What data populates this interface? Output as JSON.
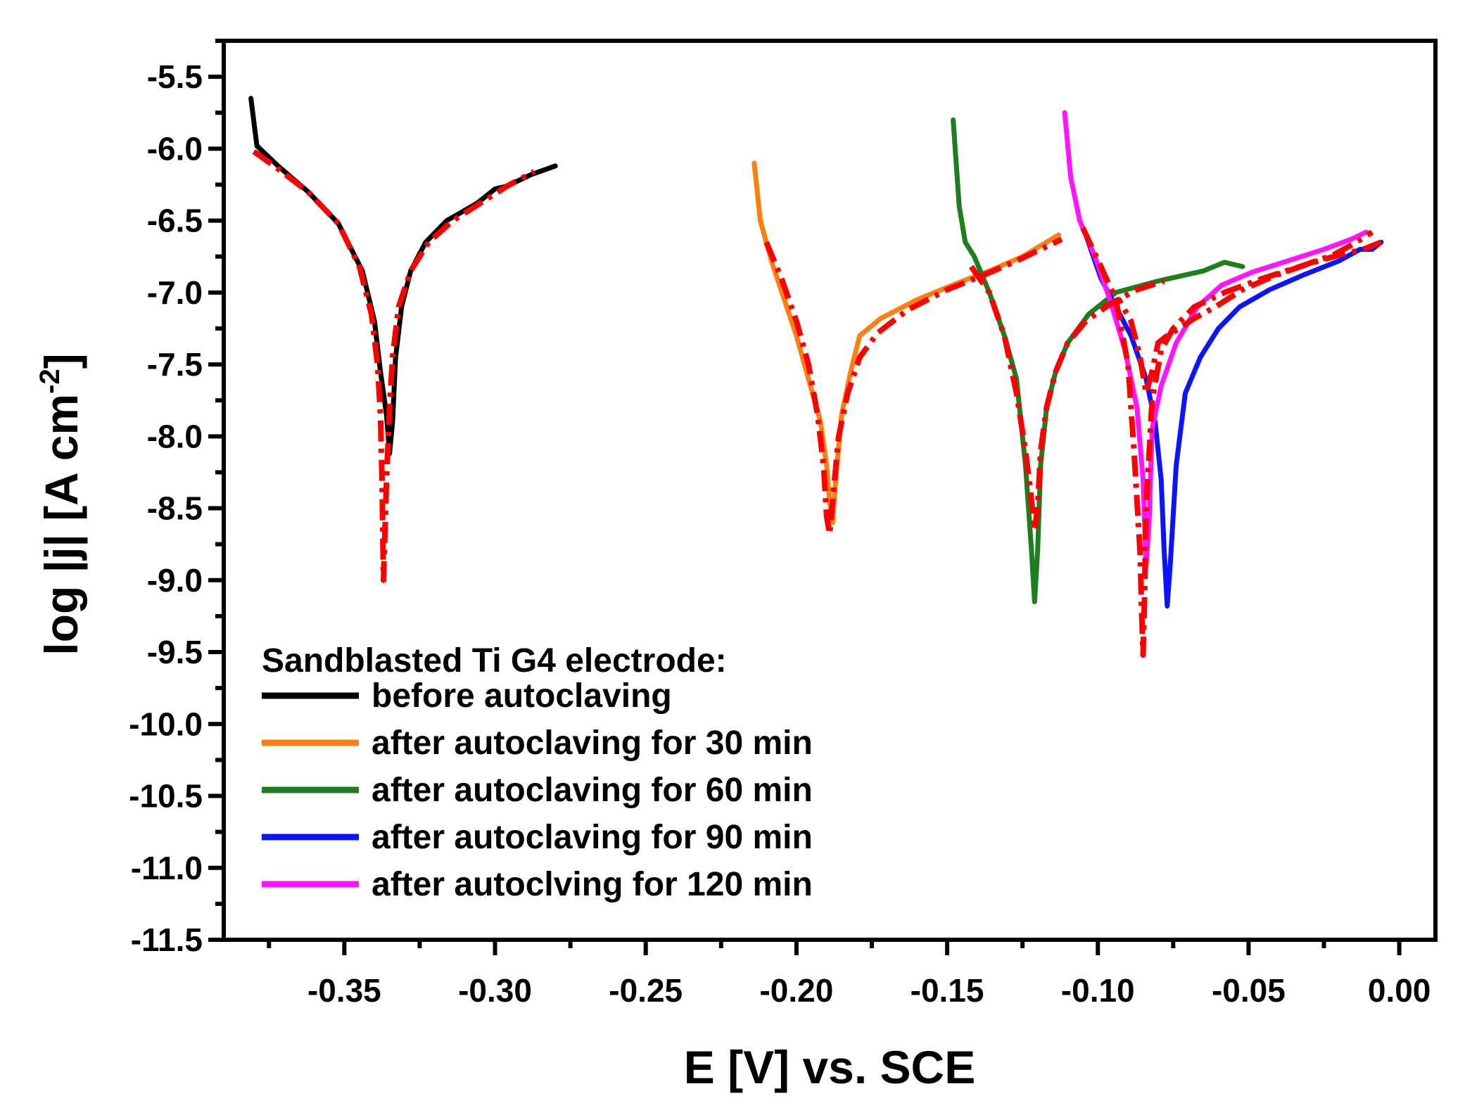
{
  "chart_data": {
    "type": "line",
    "xlabel": "E [V] vs. SCE",
    "ylabel_main": "log |j| [A cm",
    "ylabel_sup": "-2",
    "ylabel_close": "]",
    "xlim": [
      -0.39,
      0.012
    ],
    "ylim": [
      -11.5,
      -5.25
    ],
    "xticks": [
      -0.35,
      -0.3,
      -0.25,
      -0.2,
      -0.15,
      -0.1,
      -0.05,
      0.0
    ],
    "xtick_labels": [
      "-0.35",
      "-0.30",
      "-0.25",
      "-0.20",
      "-0.15",
      "-0.10",
      "-0.05",
      "0.00"
    ],
    "yticks": [
      -5.5,
      -6.0,
      -6.5,
      -7.0,
      -7.5,
      -8.0,
      -8.5,
      -9.0,
      -9.5,
      -10.0,
      -10.5,
      -11.0,
      -11.5
    ],
    "ytick_labels": [
      "-5.5",
      "-6.0",
      "-6.5",
      "-7.0",
      "-7.5",
      "-8.0",
      "-8.5",
      "-9.0",
      "-9.5",
      "-10.0",
      "-10.5",
      "-11.0",
      "-11.5"
    ],
    "grid": false,
    "legend_position": "bottom-left",
    "legend_title": "Sandblasted Ti G4 electrode:",
    "series": [
      {
        "name": "before autoclaving",
        "color": "#000000",
        "x": [
          -0.381,
          -0.379,
          -0.372,
          -0.362,
          -0.352,
          -0.344,
          -0.34,
          -0.338,
          -0.336,
          -0.335,
          -0.334,
          -0.333,
          -0.331,
          -0.328,
          -0.323,
          -0.316,
          -0.306,
          -0.3,
          -0.296,
          -0.288,
          -0.28
        ],
        "y": [
          -5.65,
          -5.98,
          -6.12,
          -6.3,
          -6.52,
          -6.85,
          -7.2,
          -7.55,
          -7.85,
          -8.12,
          -7.9,
          -7.45,
          -7.1,
          -6.85,
          -6.65,
          -6.5,
          -6.38,
          -6.28,
          -6.26,
          -6.18,
          -6.12
        ]
      },
      {
        "name": "after autoclaving for 30 min",
        "color": "#ff7f0e",
        "x": [
          -0.214,
          -0.212,
          -0.208,
          -0.204,
          -0.2,
          -0.196,
          -0.192,
          -0.19,
          -0.189,
          -0.188,
          -0.187,
          -0.185,
          -0.182,
          -0.179,
          -0.172,
          -0.16,
          -0.146,
          -0.136,
          -0.125,
          -0.117,
          -0.113
        ],
        "y": [
          -6.1,
          -6.5,
          -6.8,
          -7.05,
          -7.3,
          -7.6,
          -7.9,
          -8.2,
          -8.45,
          -8.6,
          -8.3,
          -7.85,
          -7.55,
          -7.3,
          -7.18,
          -7.05,
          -6.93,
          -6.85,
          -6.75,
          -6.65,
          -6.6
        ]
      },
      {
        "name": "after autoclaving for 60 min",
        "color": "#1e7d1e",
        "x": [
          -0.148,
          -0.147,
          -0.146,
          -0.144,
          -0.141,
          -0.136,
          -0.131,
          -0.127,
          -0.124,
          -0.122,
          -0.121,
          -0.12,
          -0.119,
          -0.117,
          -0.114,
          -0.11,
          -0.103,
          -0.094,
          -0.08,
          -0.065,
          -0.058,
          -0.052
        ],
        "y": [
          -5.8,
          -6.1,
          -6.4,
          -6.65,
          -6.75,
          -7.0,
          -7.3,
          -7.6,
          -8.2,
          -8.8,
          -9.15,
          -8.8,
          -8.2,
          -7.8,
          -7.55,
          -7.35,
          -7.15,
          -7.0,
          -6.92,
          -6.85,
          -6.79,
          -6.82
        ]
      },
      {
        "name": "after autoclaving for 90 min",
        "color": "#0a14ff",
        "x": [
          -0.104,
          -0.099,
          -0.094,
          -0.089,
          -0.084,
          -0.081,
          -0.079,
          -0.078,
          -0.077,
          -0.076,
          -0.074,
          -0.071,
          -0.066,
          -0.06,
          -0.053,
          -0.043,
          -0.032,
          -0.02,
          -0.013,
          -0.009,
          -0.006
        ],
        "y": [
          -6.6,
          -6.9,
          -7.1,
          -7.3,
          -7.6,
          -7.9,
          -8.3,
          -8.8,
          -9.18,
          -8.9,
          -8.2,
          -7.7,
          -7.45,
          -7.25,
          -7.1,
          -6.98,
          -6.88,
          -6.78,
          -6.7,
          -6.7,
          -6.65
        ]
      },
      {
        "name": "after autoclving for 120 min",
        "color": "#ff14ff",
        "x": [
          -0.111,
          -0.109,
          -0.106,
          -0.101,
          -0.096,
          -0.091,
          -0.087,
          -0.085,
          -0.084,
          -0.083,
          -0.082,
          -0.079,
          -0.074,
          -0.067,
          -0.059,
          -0.049,
          -0.037,
          -0.025,
          -0.016,
          -0.011
        ],
        "y": [
          -5.75,
          -6.2,
          -6.5,
          -6.75,
          -7.05,
          -7.4,
          -7.8,
          -8.3,
          -8.9,
          -8.6,
          -7.95,
          -7.65,
          -7.35,
          -7.1,
          -6.95,
          -6.86,
          -6.78,
          -6.7,
          -6.63,
          -6.58
        ]
      }
    ],
    "fits": [
      {
        "color": "#ff0000",
        "x": [
          -0.38,
          -0.372,
          -0.362,
          -0.352,
          -0.345,
          -0.341,
          -0.339,
          -0.338,
          -0.3375,
          -0.337,
          -0.336,
          -0.335,
          -0.334,
          -0.332,
          -0.328,
          -0.322,
          -0.314,
          -0.305,
          -0.296,
          -0.287
        ],
        "y": [
          -6.02,
          -6.14,
          -6.3,
          -6.52,
          -6.82,
          -7.15,
          -7.5,
          -7.85,
          -8.3,
          -9.0,
          -8.3,
          -7.8,
          -7.45,
          -7.1,
          -6.85,
          -6.65,
          -6.5,
          -6.38,
          -6.26,
          -6.16
        ]
      },
      {
        "color": "#ff0000",
        "x": [
          -0.21,
          -0.205,
          -0.2,
          -0.196,
          -0.193,
          -0.191,
          -0.19,
          -0.189,
          -0.188,
          -0.186,
          -0.183,
          -0.179,
          -0.173,
          -0.163,
          -0.15,
          -0.138,
          -0.127,
          -0.119,
          -0.112
        ],
        "y": [
          -6.65,
          -6.9,
          -7.2,
          -7.5,
          -7.85,
          -8.2,
          -8.55,
          -8.68,
          -8.45,
          -8.0,
          -7.7,
          -7.45,
          -7.28,
          -7.12,
          -6.98,
          -6.88,
          -6.78,
          -6.7,
          -6.63
        ]
      },
      {
        "color": "#ff0000",
        "x": [
          -0.142,
          -0.136,
          -0.131,
          -0.127,
          -0.124,
          -0.122,
          -0.121,
          -0.12,
          -0.119,
          -0.117,
          -0.114,
          -0.11,
          -0.104,
          -0.096,
          -0.087,
          -0.078
        ],
        "y": [
          -6.82,
          -7.0,
          -7.3,
          -7.7,
          -8.1,
          -8.45,
          -8.65,
          -8.5,
          -8.1,
          -7.8,
          -7.55,
          -7.35,
          -7.2,
          -7.08,
          -6.98,
          -6.92
        ]
      },
      {
        "color": "#ff0000",
        "x": [
          -0.105,
          -0.099,
          -0.094,
          -0.09,
          -0.088,
          -0.086,
          -0.0855,
          -0.085,
          -0.0845,
          -0.084,
          -0.082,
          -0.079,
          -0.075,
          -0.068,
          -0.058,
          -0.045,
          -0.033,
          -0.022,
          -0.015,
          -0.009
        ],
        "y": [
          -6.55,
          -6.82,
          -7.05,
          -7.5,
          -8.1,
          -8.8,
          -9.2,
          -9.52,
          -9.1,
          -8.5,
          -7.75,
          -7.4,
          -7.25,
          -7.1,
          -7.0,
          -6.9,
          -6.82,
          -6.74,
          -6.66,
          -6.58
        ]
      },
      {
        "color": "#ff0000",
        "x": [
          -0.098,
          -0.093,
          -0.089,
          -0.086,
          -0.084,
          -0.082,
          -0.08,
          -0.077,
          -0.073,
          -0.068,
          -0.061,
          -0.052,
          -0.041,
          -0.03,
          -0.02,
          -0.012,
          -0.006
        ],
        "y": [
          -7.1,
          -7.05,
          -7.2,
          -7.45,
          -7.7,
          -7.55,
          -7.35,
          -7.3,
          -7.25,
          -7.18,
          -7.1,
          -6.98,
          -6.88,
          -6.8,
          -6.74,
          -6.7,
          -6.65
        ]
      }
    ]
  }
}
